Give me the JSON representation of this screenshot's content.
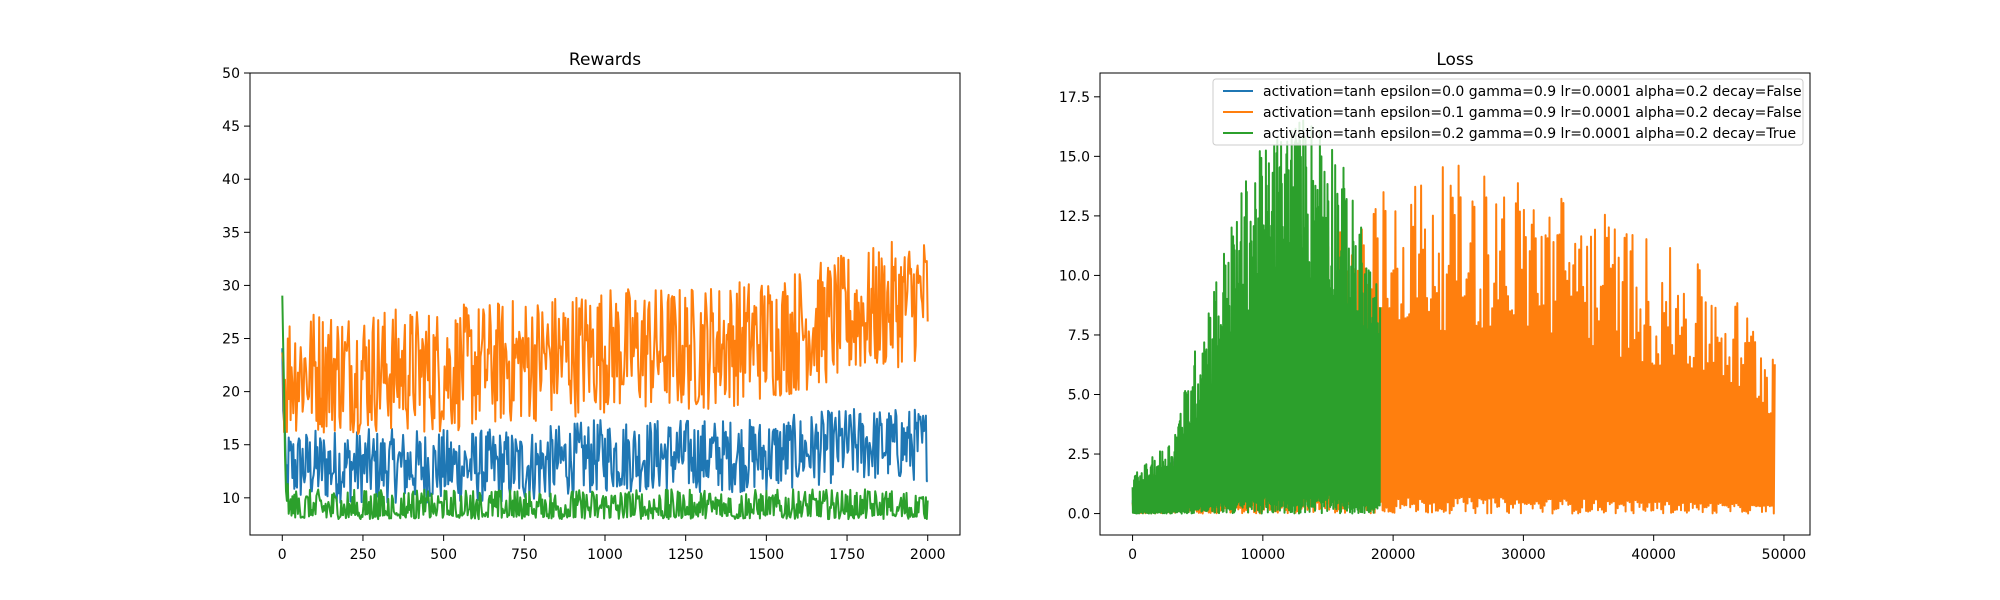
{
  "chart_data": [
    {
      "type": "line",
      "title": "Rewards",
      "xlabel": "",
      "ylabel": "",
      "xlim": [
        -100,
        2100
      ],
      "ylim": [
        6.5,
        50
      ],
      "xticks": [
        0,
        250,
        500,
        750,
        1000,
        1250,
        1500,
        1750,
        2000
      ],
      "xtick_labels": [
        "0",
        "250",
        "500",
        "750",
        "1000",
        "1250",
        "1500",
        "1750",
        "2000"
      ],
      "yticks": [
        10,
        15,
        20,
        25,
        30,
        35,
        40,
        45,
        50
      ],
      "ytick_labels": [
        "10",
        "15",
        "20",
        "25",
        "30",
        "35",
        "40",
        "45",
        "50"
      ],
      "grid": false,
      "series": [
        {
          "color": "#1f77b4",
          "x_range": [
            0,
            2000
          ],
          "x": [
            0,
            10,
            20,
            100,
            250,
            500,
            750,
            1000,
            1250,
            1500,
            1750,
            2000
          ],
          "y": [
            23,
            11,
            13,
            13,
            13,
            13,
            13,
            14,
            14,
            14,
            15,
            15
          ]
        },
        {
          "color": "#ff7f0e",
          "x_range": [
            0,
            2000
          ],
          "x": [
            0,
            10,
            20,
            100,
            250,
            500,
            750,
            1000,
            1250,
            1500,
            1750,
            2000
          ],
          "y": [
            24,
            20,
            22,
            22,
            22,
            22,
            23,
            24,
            24,
            25,
            27,
            29
          ]
        },
        {
          "color": "#2ca02c",
          "x_range": [
            0,
            2000
          ],
          "x": [
            0,
            10,
            20,
            100,
            250,
            500,
            750,
            1000,
            1250,
            1500,
            1750,
            2000
          ],
          "y": [
            28,
            12,
            9,
            9,
            9,
            9,
            9,
            9,
            9,
            9,
            9,
            9
          ]
        }
      ]
    },
    {
      "type": "line",
      "title": "Loss",
      "xlabel": "",
      "ylabel": "",
      "xlim": [
        -2500,
        52000
      ],
      "ylim": [
        -0.9,
        18.5
      ],
      "xticks": [
        0,
        10000,
        20000,
        30000,
        40000,
        50000
      ],
      "xtick_labels": [
        "0",
        "10000",
        "20000",
        "30000",
        "40000",
        "50000"
      ],
      "yticks": [
        0,
        2.5,
        5,
        7.5,
        10,
        12.5,
        15,
        17.5
      ],
      "ytick_labels": [
        "0.0",
        "2.5",
        "5.0",
        "7.5",
        "10.0",
        "12.5",
        "15.0",
        "17.5"
      ],
      "grid": false,
      "legend_position": "top-right",
      "series": [
        {
          "name": "activation=tanh epsilon=0.0 gamma=0.9 lr=0.0001 alpha=0.2 decay=False",
          "color": "#1f77b4",
          "x_range": [
            0,
            5000
          ],
          "x": [
            0,
            1000,
            2000,
            3000,
            4000,
            5000
          ],
          "y": [
            0.6,
            1.0,
            1.6,
            2.2,
            2.8,
            3.5
          ]
        },
        {
          "name": "activation=tanh epsilon=0.1 gamma=0.9 lr=0.0001 alpha=0.2 decay=False",
          "color": "#ff7f0e",
          "x_range": [
            0,
            49300
          ],
          "x": [
            0,
            5000,
            10000,
            15000,
            20000,
            25000,
            30000,
            35000,
            40000,
            45000,
            49300
          ],
          "y": [
            0.8,
            3.5,
            8,
            11.5,
            13.5,
            14,
            13.5,
            12.5,
            11,
            9.5,
            7
          ]
        },
        {
          "name": "activation=tanh epsilon=0.2 gamma=0.9 lr=0.0001 alpha=0.2 decay=True",
          "color": "#2ca02c",
          "x_range": [
            0,
            19000
          ],
          "x": [
            0,
            3000,
            6000,
            9000,
            12000,
            15000,
            19000
          ],
          "y": [
            1.5,
            3,
            9,
            14,
            16,
            16,
            9
          ]
        }
      ]
    }
  ]
}
